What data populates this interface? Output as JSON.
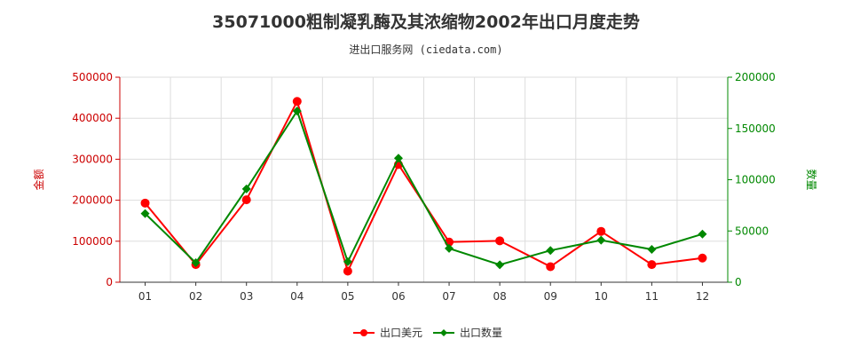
{
  "title": "35071000粗制凝乳酶及其浓缩物2002年出口月度走势",
  "subtitle": "进出口服务网 (ciedata.com)",
  "chart_data": {
    "type": "line",
    "categories": [
      "01",
      "02",
      "03",
      "04",
      "05",
      "06",
      "07",
      "08",
      "09",
      "10",
      "11",
      "12"
    ],
    "y_left": {
      "label": "金额",
      "ticks": [
        "0",
        "100000",
        "200000",
        "300000",
        "400000",
        "500000"
      ],
      "range": [
        0,
        500000
      ],
      "color": "#cc0000"
    },
    "y_right": {
      "label": "数量",
      "ticks": [
        "0",
        "50000",
        "100000",
        "150000",
        "200000"
      ],
      "range": [
        0,
        200000
      ],
      "color": "#008800"
    },
    "grid": true,
    "legend_position": "bottom",
    "series": [
      {
        "name": "出口美元",
        "axis": "left",
        "color": "#ff0000",
        "values": [
          193000,
          43000,
          201000,
          441000,
          27000,
          287000,
          98000,
          101000,
          38000,
          124000,
          43000,
          59000
        ]
      },
      {
        "name": "出口数量",
        "axis": "right",
        "color": "#008800",
        "values": [
          67000,
          19000,
          91000,
          167000,
          20000,
          121000,
          33000,
          17000,
          31000,
          41000,
          32000,
          47000
        ]
      }
    ]
  }
}
